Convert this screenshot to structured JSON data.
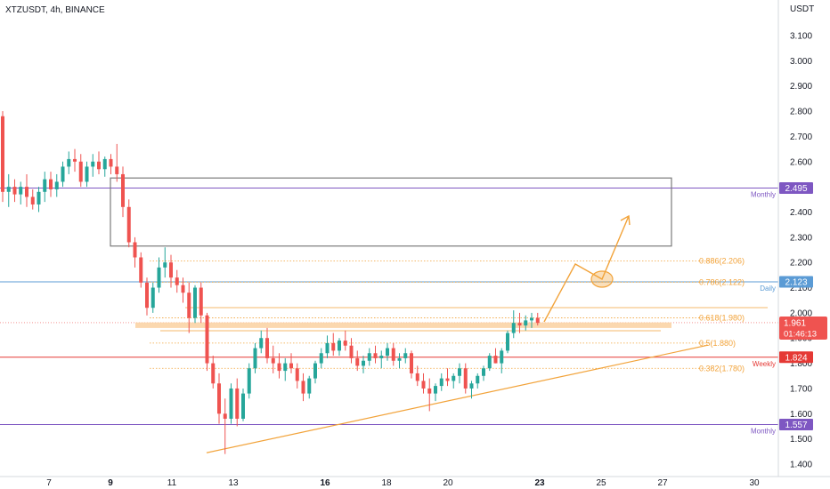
{
  "header": {
    "symbol_title": "XTZUSDT, 4h, BINANCE"
  },
  "axis": {
    "currency": "USDT"
  },
  "colors": {
    "up": "#26a69a",
    "down": "#ef5350",
    "wick": "#555555",
    "monthly": "#7e57c2",
    "daily": "#5b9bd5",
    "weekly": "#e53935",
    "fib": "#f2a33a",
    "zone": "#fbd4a6",
    "box": "#7b7b7b",
    "current_price": "#ef5350"
  },
  "chart_data": {
    "type": "candlestick",
    "x_ticks": [
      "7",
      "9",
      "11",
      "13",
      "16",
      "18",
      "20",
      "23",
      "25",
      "27",
      "30"
    ],
    "y_ticks": [
      "1.400",
      "1.500",
      "1.600",
      "1.700",
      "1.800",
      "1.900",
      "2.000",
      "2.100",
      "2.200",
      "2.300",
      "2.400",
      "2.500",
      "2.600",
      "2.700",
      "2.800",
      "2.900",
      "3.000",
      "3.100"
    ],
    "ylim": [
      1.36,
      3.18
    ],
    "candles": [
      [
        2.78,
        2.8,
        2.44,
        2.48
      ],
      [
        2.48,
        2.55,
        2.42,
        2.5
      ],
      [
        2.5,
        2.53,
        2.44,
        2.47
      ],
      [
        2.47,
        2.52,
        2.43,
        2.5
      ],
      [
        2.5,
        2.55,
        2.42,
        2.46
      ],
      [
        2.46,
        2.49,
        2.41,
        2.43
      ],
      [
        2.43,
        2.5,
        2.4,
        2.48
      ],
      [
        2.48,
        2.56,
        2.44,
        2.53
      ],
      [
        2.53,
        2.56,
        2.46,
        2.49
      ],
      [
        2.49,
        2.55,
        2.46,
        2.52
      ],
      [
        2.52,
        2.6,
        2.5,
        2.58
      ],
      [
        2.58,
        2.64,
        2.55,
        2.61
      ],
      [
        2.61,
        2.65,
        2.56,
        2.6
      ],
      [
        2.6,
        2.63,
        2.5,
        2.52
      ],
      [
        2.52,
        2.6,
        2.5,
        2.58
      ],
      [
        2.58,
        2.63,
        2.54,
        2.6
      ],
      [
        2.6,
        2.64,
        2.55,
        2.57
      ],
      [
        2.57,
        2.62,
        2.54,
        2.61
      ],
      [
        2.61,
        2.63,
        2.55,
        2.58
      ],
      [
        2.58,
        2.67,
        2.52,
        2.55
      ],
      [
        2.55,
        2.58,
        2.38,
        2.42
      ],
      [
        2.42,
        2.45,
        2.26,
        2.28
      ],
      [
        2.28,
        2.3,
        2.18,
        2.22
      ],
      [
        2.22,
        2.24,
        2.1,
        2.12
      ],
      [
        2.12,
        2.14,
        1.99,
        2.02
      ],
      [
        2.02,
        2.12,
        2.0,
        2.1
      ],
      [
        2.1,
        2.22,
        2.08,
        2.18
      ],
      [
        2.18,
        2.26,
        2.14,
        2.2
      ],
      [
        2.2,
        2.23,
        2.1,
        2.14
      ],
      [
        2.14,
        2.17,
        2.08,
        2.11
      ],
      [
        2.11,
        2.14,
        2.04,
        2.08
      ],
      [
        2.08,
        2.12,
        1.92,
        1.98
      ],
      [
        1.98,
        2.11,
        1.96,
        2.1
      ],
      [
        2.1,
        2.12,
        1.96,
        1.99
      ],
      [
        1.99,
        2.0,
        1.77,
        1.8
      ],
      [
        1.8,
        1.83,
        1.7,
        1.72
      ],
      [
        1.72,
        1.76,
        1.56,
        1.6
      ],
      [
        1.6,
        1.66,
        1.44,
        1.58
      ],
      [
        1.58,
        1.72,
        1.56,
        1.7
      ],
      [
        1.7,
        1.74,
        1.55,
        1.58
      ],
      [
        1.58,
        1.7,
        1.57,
        1.68
      ],
      [
        1.68,
        1.8,
        1.66,
        1.78
      ],
      [
        1.78,
        1.88,
        1.76,
        1.86
      ],
      [
        1.86,
        1.93,
        1.84,
        1.9
      ],
      [
        1.9,
        1.94,
        1.8,
        1.82
      ],
      [
        1.82,
        1.87,
        1.76,
        1.8
      ],
      [
        1.8,
        1.84,
        1.74,
        1.77
      ],
      [
        1.77,
        1.82,
        1.73,
        1.8
      ],
      [
        1.8,
        1.84,
        1.76,
        1.78
      ],
      [
        1.78,
        1.8,
        1.7,
        1.73
      ],
      [
        1.73,
        1.76,
        1.65,
        1.68
      ],
      [
        1.68,
        1.75,
        1.66,
        1.74
      ],
      [
        1.74,
        1.81,
        1.72,
        1.8
      ],
      [
        1.8,
        1.86,
        1.78,
        1.84
      ],
      [
        1.84,
        1.91,
        1.82,
        1.88
      ],
      [
        1.88,
        1.92,
        1.83,
        1.85
      ],
      [
        1.85,
        1.9,
        1.83,
        1.89
      ],
      [
        1.89,
        1.93,
        1.85,
        1.87
      ],
      [
        1.87,
        1.9,
        1.8,
        1.82
      ],
      [
        1.82,
        1.85,
        1.77,
        1.79
      ],
      [
        1.79,
        1.83,
        1.76,
        1.81
      ],
      [
        1.81,
        1.86,
        1.79,
        1.84
      ],
      [
        1.84,
        1.87,
        1.8,
        1.82
      ],
      [
        1.82,
        1.85,
        1.78,
        1.83
      ],
      [
        1.83,
        1.88,
        1.81,
        1.86
      ],
      [
        1.86,
        1.88,
        1.79,
        1.81
      ],
      [
        1.81,
        1.84,
        1.78,
        1.82
      ],
      [
        1.82,
        1.86,
        1.8,
        1.84
      ],
      [
        1.84,
        1.85,
        1.74,
        1.76
      ],
      [
        1.76,
        1.79,
        1.71,
        1.73
      ],
      [
        1.73,
        1.76,
        1.68,
        1.7
      ],
      [
        1.7,
        1.74,
        1.61,
        1.68
      ],
      [
        1.68,
        1.72,
        1.65,
        1.71
      ],
      [
        1.71,
        1.76,
        1.69,
        1.74
      ],
      [
        1.74,
        1.78,
        1.71,
        1.73
      ],
      [
        1.73,
        1.76,
        1.7,
        1.75
      ],
      [
        1.75,
        1.8,
        1.72,
        1.78
      ],
      [
        1.78,
        1.8,
        1.68,
        1.7
      ],
      [
        1.7,
        1.73,
        1.66,
        1.72
      ],
      [
        1.72,
        1.76,
        1.7,
        1.75
      ],
      [
        1.75,
        1.79,
        1.73,
        1.78
      ],
      [
        1.78,
        1.84,
        1.77,
        1.83
      ],
      [
        1.83,
        1.86,
        1.8,
        1.8
      ],
      [
        1.8,
        1.86,
        1.76,
        1.85
      ],
      [
        1.85,
        1.93,
        1.84,
        1.92
      ],
      [
        1.92,
        2.01,
        1.9,
        1.96
      ],
      [
        1.96,
        2.0,
        1.92,
        1.95
      ],
      [
        1.95,
        1.99,
        1.93,
        1.97
      ],
      [
        1.97,
        2.0,
        1.94,
        1.98
      ],
      [
        1.98,
        2.0,
        1.95,
        1.96
      ]
    ],
    "horizontal_levels": [
      {
        "price": 2.495,
        "label": "Monthly",
        "badge": "2.495",
        "color_key": "monthly"
      },
      {
        "price": 2.123,
        "label": "Daily",
        "badge": "2.123",
        "color_key": "daily"
      },
      {
        "price": 1.824,
        "label": "Weekly",
        "badge": "1.824",
        "color_key": "weekly"
      },
      {
        "price": 1.557,
        "label": "Monthly",
        "badge": "1.557",
        "color_key": "monthly"
      }
    ],
    "fib_levels": [
      {
        "price": 2.206,
        "label": "0.886(2.206)"
      },
      {
        "price": 2.122,
        "label": "0.786(2.122)"
      },
      {
        "price": 1.98,
        "label": "0.618(1.980)"
      },
      {
        "price": 1.88,
        "label": "0.5(1.880)"
      },
      {
        "price": 1.78,
        "label": "0.382(1.780)"
      }
    ],
    "resistance_box": {
      "top": 2.535,
      "bottom": 2.265
    },
    "supply_zone": {
      "top": 1.962,
      "bottom": 1.94
    },
    "current_price": {
      "value": "1.961",
      "countdown": "01:46:13",
      "price": 1.961
    }
  }
}
